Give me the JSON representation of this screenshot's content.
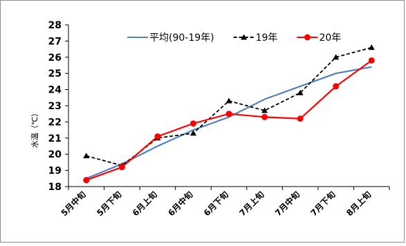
{
  "chart_data": {
    "type": "line",
    "ylabel": "水温（℃）",
    "ylim": [
      18,
      28
    ],
    "y_ticks": [
      18,
      19,
      20,
      21,
      22,
      23,
      24,
      25,
      26,
      27,
      28
    ],
    "categories": [
      "5月中旬",
      "5月下旬",
      "6月上旬",
      "6月中旬",
      "6月下旬",
      "7月上旬",
      "7月中旬",
      "7月下旬",
      "8月上旬"
    ],
    "legend_position": "top",
    "grid": false,
    "series": [
      {
        "name": "平均(90-19年)",
        "values": [
          18.5,
          19.4,
          20.5,
          21.5,
          22.3,
          23.4,
          24.2,
          25.0,
          25.4
        ],
        "color": "#4f81bd",
        "style": "solid",
        "marker": "none"
      },
      {
        "name": "19年",
        "values": [
          19.9,
          19.3,
          21.0,
          21.3,
          23.3,
          22.7,
          23.8,
          26.0,
          26.6
        ],
        "color": "#000000",
        "style": "dashed",
        "marker": "triangle"
      },
      {
        "name": "20年",
        "values": [
          18.4,
          19.2,
          21.1,
          21.9,
          22.5,
          22.3,
          22.2,
          24.2,
          25.8
        ],
        "color": "#ff0000",
        "style": "solid",
        "marker": "circle"
      }
    ]
  }
}
